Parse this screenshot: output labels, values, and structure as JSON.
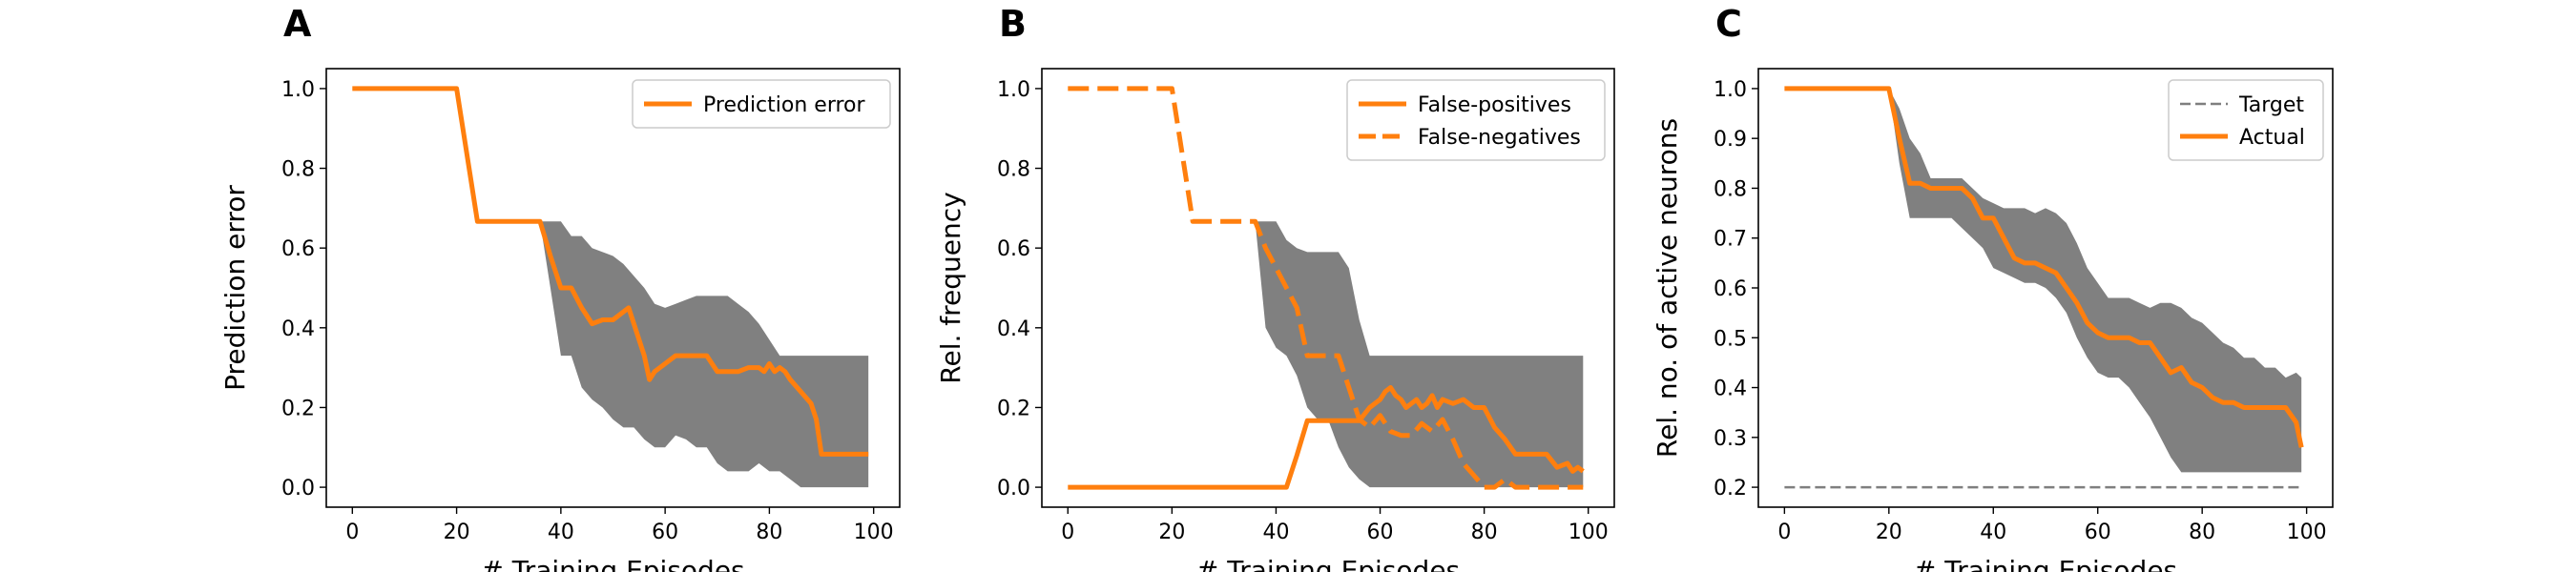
{
  "colors": {
    "orange": "#ff7f0e",
    "band": "#808080",
    "target": "#7f7f7f",
    "frame": "#000000"
  },
  "chart_data": [
    {
      "panel_letter": "A",
      "type": "line",
      "title": "",
      "xlabel": "# Training Episodes",
      "ylabel": "Prediction error",
      "xlim": [
        -5,
        105
      ],
      "ylim": [
        -0.05,
        1.05
      ],
      "x_ticks": [
        0,
        20,
        40,
        60,
        80,
        100
      ],
      "y_ticks": [
        0.0,
        0.2,
        0.4,
        0.6,
        0.8,
        1.0
      ],
      "y_tick_labels": [
        "0.0",
        "0.2",
        "0.4",
        "0.6",
        "0.8",
        "1.0"
      ],
      "grid": false,
      "legend_position": "top-right",
      "series": [
        {
          "name": "Prediction error",
          "style": "solid",
          "x": [
            0,
            20,
            24,
            36,
            38,
            40,
            42,
            44,
            46,
            48,
            50,
            52,
            53,
            54,
            56,
            57,
            58,
            60,
            62,
            64,
            66,
            68,
            70,
            72,
            74,
            76,
            78,
            79,
            80,
            81,
            82,
            83,
            84,
            86,
            88,
            89,
            90,
            92,
            94,
            96,
            98,
            99
          ],
          "y": [
            1.0,
            1.0,
            0.667,
            0.667,
            0.58,
            0.5,
            0.5,
            0.45,
            0.41,
            0.42,
            0.42,
            0.44,
            0.45,
            0.41,
            0.33,
            0.27,
            0.29,
            0.31,
            0.33,
            0.33,
            0.33,
            0.33,
            0.29,
            0.29,
            0.29,
            0.3,
            0.3,
            0.29,
            0.31,
            0.29,
            0.3,
            0.29,
            0.27,
            0.24,
            0.21,
            0.17,
            0.083,
            0.083,
            0.083,
            0.083,
            0.083,
            0.083
          ]
        }
      ],
      "band": {
        "x": [
          36,
          38,
          40,
          42,
          44,
          46,
          48,
          50,
          52,
          54,
          56,
          58,
          60,
          62,
          64,
          66,
          68,
          70,
          72,
          74,
          76,
          78,
          80,
          82,
          84,
          86,
          88,
          90,
          92,
          94,
          96,
          98,
          99
        ],
        "lower": [
          0.667,
          0.5,
          0.33,
          0.33,
          0.25,
          0.22,
          0.2,
          0.17,
          0.15,
          0.15,
          0.12,
          0.1,
          0.1,
          0.13,
          0.12,
          0.1,
          0.1,
          0.06,
          0.04,
          0.04,
          0.04,
          0.06,
          0.04,
          0.04,
          0.02,
          0.0,
          0.0,
          0.0,
          0.0,
          0.0,
          0.0,
          0.0,
          0.0
        ],
        "upper": [
          0.667,
          0.667,
          0.667,
          0.63,
          0.63,
          0.6,
          0.59,
          0.58,
          0.56,
          0.53,
          0.5,
          0.46,
          0.45,
          0.46,
          0.47,
          0.48,
          0.48,
          0.48,
          0.48,
          0.46,
          0.44,
          0.41,
          0.37,
          0.33,
          0.33,
          0.33,
          0.33,
          0.33,
          0.33,
          0.33,
          0.33,
          0.33,
          0.33
        ]
      }
    },
    {
      "panel_letter": "B",
      "type": "line",
      "title": "",
      "xlabel": "# Training Episodes",
      "ylabel": "Rel. frequency",
      "xlim": [
        -5,
        105
      ],
      "ylim": [
        -0.05,
        1.05
      ],
      "x_ticks": [
        0,
        20,
        40,
        60,
        80,
        100
      ],
      "y_ticks": [
        0.0,
        0.2,
        0.4,
        0.6,
        0.8,
        1.0
      ],
      "y_tick_labels": [
        "0.0",
        "0.2",
        "0.4",
        "0.6",
        "0.8",
        "1.0"
      ],
      "grid": false,
      "legend_position": "top-right",
      "series": [
        {
          "name": "False-positives",
          "style": "solid",
          "x": [
            0,
            36,
            42,
            44,
            46,
            48,
            50,
            54,
            56,
            58,
            60,
            61,
            62,
            63,
            64,
            65,
            66,
            67,
            68,
            69,
            70,
            71,
            72,
            74,
            76,
            78,
            80,
            82,
            84,
            86,
            88,
            90,
            92,
            94,
            96,
            97,
            98,
            99
          ],
          "y": [
            0.0,
            0.0,
            0.0,
            0.08,
            0.167,
            0.167,
            0.167,
            0.167,
            0.167,
            0.2,
            0.22,
            0.24,
            0.25,
            0.23,
            0.22,
            0.2,
            0.21,
            0.22,
            0.2,
            0.21,
            0.23,
            0.2,
            0.22,
            0.21,
            0.22,
            0.2,
            0.2,
            0.15,
            0.12,
            0.083,
            0.083,
            0.083,
            0.083,
            0.05,
            0.06,
            0.04,
            0.05,
            0.04
          ]
        },
        {
          "name": "False-negatives",
          "style": "dashed",
          "x": [
            0,
            20,
            24,
            36,
            38,
            40,
            42,
            44,
            46,
            48,
            50,
            52,
            54,
            56,
            58,
            60,
            62,
            64,
            66,
            68,
            70,
            72,
            74,
            76,
            78,
            80,
            82,
            84,
            86,
            88,
            90,
            92,
            94,
            96,
            98,
            99
          ],
          "y": [
            1.0,
            1.0,
            0.667,
            0.667,
            0.6,
            0.55,
            0.5,
            0.45,
            0.33,
            0.33,
            0.33,
            0.33,
            0.25,
            0.17,
            0.15,
            0.18,
            0.14,
            0.13,
            0.13,
            0.16,
            0.14,
            0.17,
            0.12,
            0.06,
            0.03,
            0.0,
            0.0,
            0.02,
            0.0,
            0.0,
            0.0,
            0.0,
            0.0,
            0.0,
            0.0,
            0.0
          ]
        }
      ],
      "band": {
        "x": [
          36,
          38,
          40,
          42,
          44,
          46,
          48,
          50,
          52,
          54,
          56,
          58,
          60,
          62,
          64,
          66,
          68,
          70,
          72,
          74,
          76,
          78,
          80,
          82,
          84,
          86,
          88,
          90,
          92,
          94,
          96,
          98,
          99
        ],
        "lower": [
          0.667,
          0.4,
          0.35,
          0.33,
          0.28,
          0.2,
          0.17,
          0.17,
          0.1,
          0.05,
          0.02,
          0.0,
          0.0,
          0.0,
          0.0,
          0.0,
          0.0,
          0.0,
          0.0,
          0.0,
          0.0,
          0.0,
          0.0,
          0.0,
          0.0,
          0.0,
          0.0,
          0.0,
          0.0,
          0.0,
          0.0,
          0.0,
          0.0
        ],
        "upper": [
          0.667,
          0.667,
          0.667,
          0.62,
          0.6,
          0.59,
          0.59,
          0.59,
          0.59,
          0.55,
          0.42,
          0.33,
          0.33,
          0.33,
          0.33,
          0.33,
          0.33,
          0.33,
          0.33,
          0.33,
          0.33,
          0.33,
          0.33,
          0.33,
          0.33,
          0.33,
          0.33,
          0.33,
          0.33,
          0.33,
          0.33,
          0.33,
          0.33
        ]
      }
    },
    {
      "panel_letter": "C",
      "type": "line",
      "title": "",
      "xlabel": "# Training Episodes",
      "ylabel": "Rel. no. of active neurons",
      "xlim": [
        -5,
        105
      ],
      "ylim": [
        0.16,
        1.04
      ],
      "x_ticks": [
        0,
        20,
        40,
        60,
        80,
        100
      ],
      "y_ticks": [
        0.2,
        0.3,
        0.4,
        0.5,
        0.6,
        0.7,
        0.8,
        0.9,
        1.0
      ],
      "y_tick_labels": [
        "0.2",
        "0.3",
        "0.4",
        "0.5",
        "0.6",
        "0.7",
        "0.8",
        "0.9",
        "1.0"
      ],
      "grid": false,
      "legend_position": "top-right",
      "series": [
        {
          "name": "Target",
          "style": "dashed",
          "x": [
            0,
            99
          ],
          "y": [
            0.2,
            0.2
          ]
        },
        {
          "name": "Actual",
          "style": "solid",
          "x": [
            0,
            20,
            22,
            24,
            26,
            28,
            30,
            32,
            34,
            36,
            38,
            40,
            42,
            44,
            46,
            48,
            50,
            52,
            54,
            56,
            58,
            60,
            62,
            64,
            66,
            68,
            70,
            72,
            74,
            76,
            78,
            80,
            82,
            84,
            86,
            88,
            90,
            92,
            94,
            96,
            98,
            99
          ],
          "y": [
            1.0,
            1.0,
            0.9,
            0.81,
            0.81,
            0.8,
            0.8,
            0.8,
            0.8,
            0.78,
            0.74,
            0.74,
            0.7,
            0.66,
            0.65,
            0.65,
            0.64,
            0.63,
            0.6,
            0.57,
            0.53,
            0.51,
            0.5,
            0.5,
            0.5,
            0.49,
            0.49,
            0.46,
            0.43,
            0.44,
            0.41,
            0.4,
            0.38,
            0.37,
            0.37,
            0.36,
            0.36,
            0.36,
            0.36,
            0.36,
            0.33,
            0.28
          ]
        }
      ],
      "band": {
        "x": [
          20,
          22,
          24,
          26,
          28,
          30,
          32,
          34,
          36,
          38,
          40,
          42,
          44,
          46,
          48,
          50,
          52,
          54,
          56,
          58,
          60,
          62,
          64,
          66,
          68,
          70,
          72,
          74,
          76,
          78,
          80,
          82,
          84,
          86,
          88,
          90,
          92,
          94,
          96,
          98,
          99
        ],
        "lower": [
          1.0,
          0.85,
          0.74,
          0.74,
          0.74,
          0.74,
          0.74,
          0.72,
          0.7,
          0.68,
          0.64,
          0.63,
          0.62,
          0.61,
          0.61,
          0.6,
          0.58,
          0.55,
          0.5,
          0.46,
          0.43,
          0.42,
          0.42,
          0.4,
          0.37,
          0.34,
          0.3,
          0.26,
          0.23,
          0.23,
          0.23,
          0.23,
          0.23,
          0.23,
          0.23,
          0.23,
          0.23,
          0.23,
          0.23,
          0.23,
          0.23
        ],
        "upper": [
          1.0,
          0.96,
          0.9,
          0.87,
          0.82,
          0.82,
          0.82,
          0.82,
          0.8,
          0.78,
          0.77,
          0.76,
          0.76,
          0.76,
          0.75,
          0.76,
          0.75,
          0.73,
          0.69,
          0.64,
          0.61,
          0.58,
          0.58,
          0.58,
          0.57,
          0.56,
          0.57,
          0.57,
          0.56,
          0.54,
          0.53,
          0.51,
          0.49,
          0.48,
          0.46,
          0.46,
          0.44,
          0.44,
          0.42,
          0.43,
          0.42
        ]
      }
    }
  ]
}
